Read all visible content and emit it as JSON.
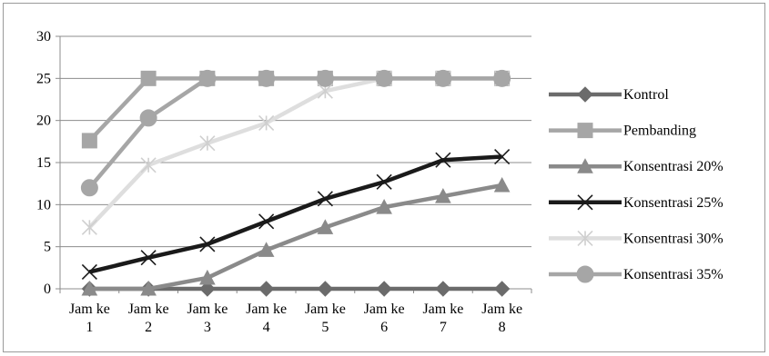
{
  "chart_data": {
    "type": "line",
    "title": "",
    "xlabel": "",
    "ylabel": "",
    "categories": [
      "Jam ke 1",
      "Jam ke 2",
      "Jam ke 3",
      "Jam ke 4",
      "Jam ke 5",
      "Jam ke 6",
      "Jam ke 7",
      "Jam ke 8"
    ],
    "category_lines": [
      [
        "Jam ke",
        "1"
      ],
      [
        "Jam ke",
        "2"
      ],
      [
        "Jam ke",
        "3"
      ],
      [
        "Jam ke",
        "4"
      ],
      [
        "Jam ke",
        "5"
      ],
      [
        "Jam ke",
        "6"
      ],
      [
        "Jam ke",
        "7"
      ],
      [
        "Jam ke",
        "8"
      ]
    ],
    "ylim": [
      0,
      30
    ],
    "yticks": [
      0,
      5,
      10,
      15,
      20,
      25,
      30
    ],
    "grid": "horizontal",
    "legend_position": "right",
    "series": [
      {
        "name": "Kontrol",
        "color": "#6b6b6b",
        "marker": "diamond",
        "values": [
          0,
          0,
          0,
          0,
          0,
          0,
          0,
          0
        ]
      },
      {
        "name": "Pembanding",
        "color": "#a6a6a6",
        "marker": "square",
        "values": [
          17.6,
          25,
          25,
          25,
          25,
          25,
          25,
          25
        ]
      },
      {
        "name": "Konsentrasi 20%",
        "color": "#8a8a8a",
        "marker": "triangle",
        "values": [
          0,
          0,
          1.3,
          4.6,
          7.3,
          9.7,
          11,
          12.3
        ]
      },
      {
        "name": "Konsentrasi 25%",
        "color": "#1a1a1a",
        "marker": "x",
        "values": [
          2,
          3.7,
          5.3,
          8,
          10.7,
          12.7,
          15.3,
          15.7
        ]
      },
      {
        "name": "Konsentrasi 30%",
        "color": "#dedede",
        "marker": "star",
        "values": [
          7.3,
          14.7,
          17.3,
          19.7,
          23.5,
          25,
          25,
          25
        ]
      },
      {
        "name": "Konsentrasi 35%",
        "color": "#a6a6a6",
        "marker": "circle",
        "values": [
          12,
          20.3,
          25,
          25,
          25,
          25,
          25,
          25
        ]
      }
    ]
  }
}
